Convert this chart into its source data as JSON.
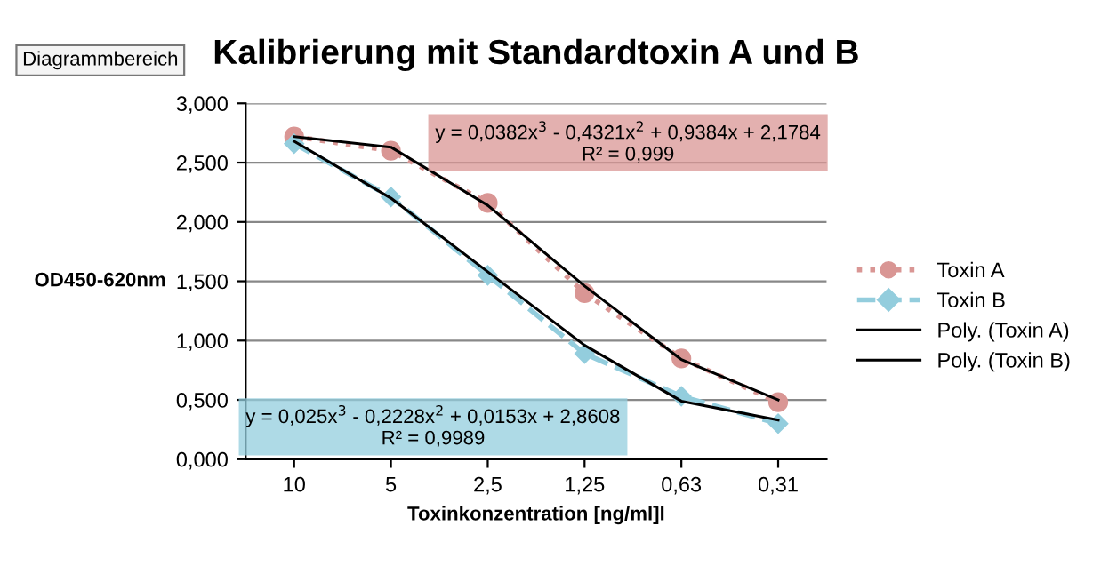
{
  "chart_data": {
    "type": "line",
    "title": "Kalibrierung mit Standardtoxin A und B",
    "xlabel": "Toxinkonzentration [ng/ml]l",
    "ylabel": "OD450-620nm",
    "categories": [
      "10",
      "5",
      "2,5",
      "1,25",
      "0,63",
      "0,31"
    ],
    "series": [
      {
        "name": "Toxin A",
        "color": "#d99694",
        "values": [
          2.72,
          2.6,
          2.16,
          1.4,
          0.85,
          0.48
        ],
        "marker": "circle",
        "line_style": "dotted"
      },
      {
        "name": "Toxin B",
        "color": "#93cddd",
        "values": [
          2.66,
          2.21,
          1.55,
          0.89,
          0.53,
          0.3
        ],
        "marker": "diamond",
        "line_style": "dashed"
      },
      {
        "name": "Poly. (Toxin A)",
        "color": "#000000",
        "values": [
          2.72,
          2.63,
          2.14,
          1.46,
          0.84,
          0.5
        ],
        "marker": "none",
        "line_style": "solid"
      },
      {
        "name": "Poly. (Toxin B)",
        "color": "#000000",
        "values": [
          2.68,
          2.2,
          1.58,
          0.96,
          0.49,
          0.33
        ],
        "marker": "none",
        "line_style": "solid"
      }
    ],
    "ylim": [
      0,
      3
    ],
    "yticks": [
      {
        "value": 0,
        "label": "0,000"
      },
      {
        "value": 0.5,
        "label": "0,500"
      },
      {
        "value": 1,
        "label": "1,000"
      },
      {
        "value": 1.5,
        "label": "1,500"
      },
      {
        "value": 2,
        "label": "2,000"
      },
      {
        "value": 2.5,
        "label": "2,500"
      },
      {
        "value": 3,
        "label": "3,000"
      }
    ],
    "grid": "y",
    "legend": "right",
    "annotations": [
      "y = 0,0382x$^{3}$ - 0,4321x$^{2}$ + 0,9384x + 2,1784\nR² = 0,999",
      "y = 0,025x$^{3}$ - 0,2228x$^{2}$ + 0,0153x + 2,8608\nR² = 0,9989",
      "Diagrammbereich"
    ]
  }
}
